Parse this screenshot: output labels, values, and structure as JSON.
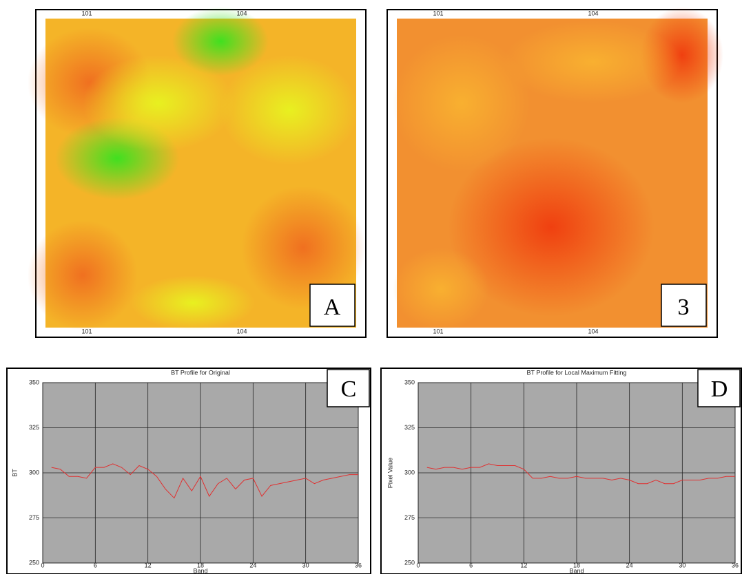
{
  "panels": [
    {
      "label": "A",
      "xticks": [
        "101",
        "104"
      ]
    },
    {
      "label": "3",
      "xticks": [
        "101",
        "104"
      ]
    }
  ],
  "chart_data": [
    {
      "type": "line",
      "title": "BT Profile for Original",
      "panel_label": "C",
      "x_label": "Band",
      "y_label": "BT",
      "x": [
        1,
        2,
        3,
        4,
        5,
        6,
        7,
        8,
        9,
        10,
        11,
        12,
        13,
        14,
        15,
        16,
        17,
        18,
        19,
        20,
        21,
        22,
        23,
        24,
        25,
        26,
        27,
        28,
        29,
        30,
        31,
        32,
        33,
        34,
        35,
        36
      ],
      "values": [
        303,
        302,
        298,
        298,
        297,
        303,
        303,
        305,
        303,
        299,
        304,
        302,
        298,
        291,
        286,
        297,
        290,
        298,
        287,
        294,
        297,
        291,
        296,
        297,
        287,
        293,
        294,
        295,
        296,
        297,
        294,
        296,
        297,
        298,
        299,
        299
      ],
      "color": "#e03030",
      "xlim": [
        0,
        36
      ],
      "xticks": [
        0,
        6,
        12,
        18,
        24,
        30,
        36
      ],
      "ylim": [
        250,
        350
      ],
      "yticks": [
        250,
        275,
        300,
        325,
        350
      ],
      "grid": true
    },
    {
      "type": "line",
      "title": "BT Profile for Local Maximum Fitting",
      "panel_label": "D",
      "x_label": "Band",
      "y_label": "Pixel Value",
      "x": [
        1,
        2,
        3,
        4,
        5,
        6,
        7,
        8,
        9,
        10,
        11,
        12,
        13,
        14,
        15,
        16,
        17,
        18,
        19,
        20,
        21,
        22,
        23,
        24,
        25,
        26,
        27,
        28,
        29,
        30,
        31,
        32,
        33,
        34,
        35,
        36
      ],
      "values": [
        303,
        302,
        303,
        303,
        302,
        303,
        303,
        305,
        304,
        304,
        304,
        302,
        297,
        297,
        298,
        297,
        297,
        298,
        297,
        297,
        297,
        296,
        297,
        296,
        294,
        294,
        296,
        294,
        294,
        296,
        296,
        296,
        297,
        297,
        298,
        298
      ],
      "color": "#e03030",
      "xlim": [
        0,
        36
      ],
      "xticks": [
        0,
        6,
        12,
        18,
        24,
        30,
        36
      ],
      "ylim": [
        250,
        350
      ],
      "yticks": [
        250,
        275,
        300,
        325,
        350
      ],
      "grid": true
    }
  ]
}
